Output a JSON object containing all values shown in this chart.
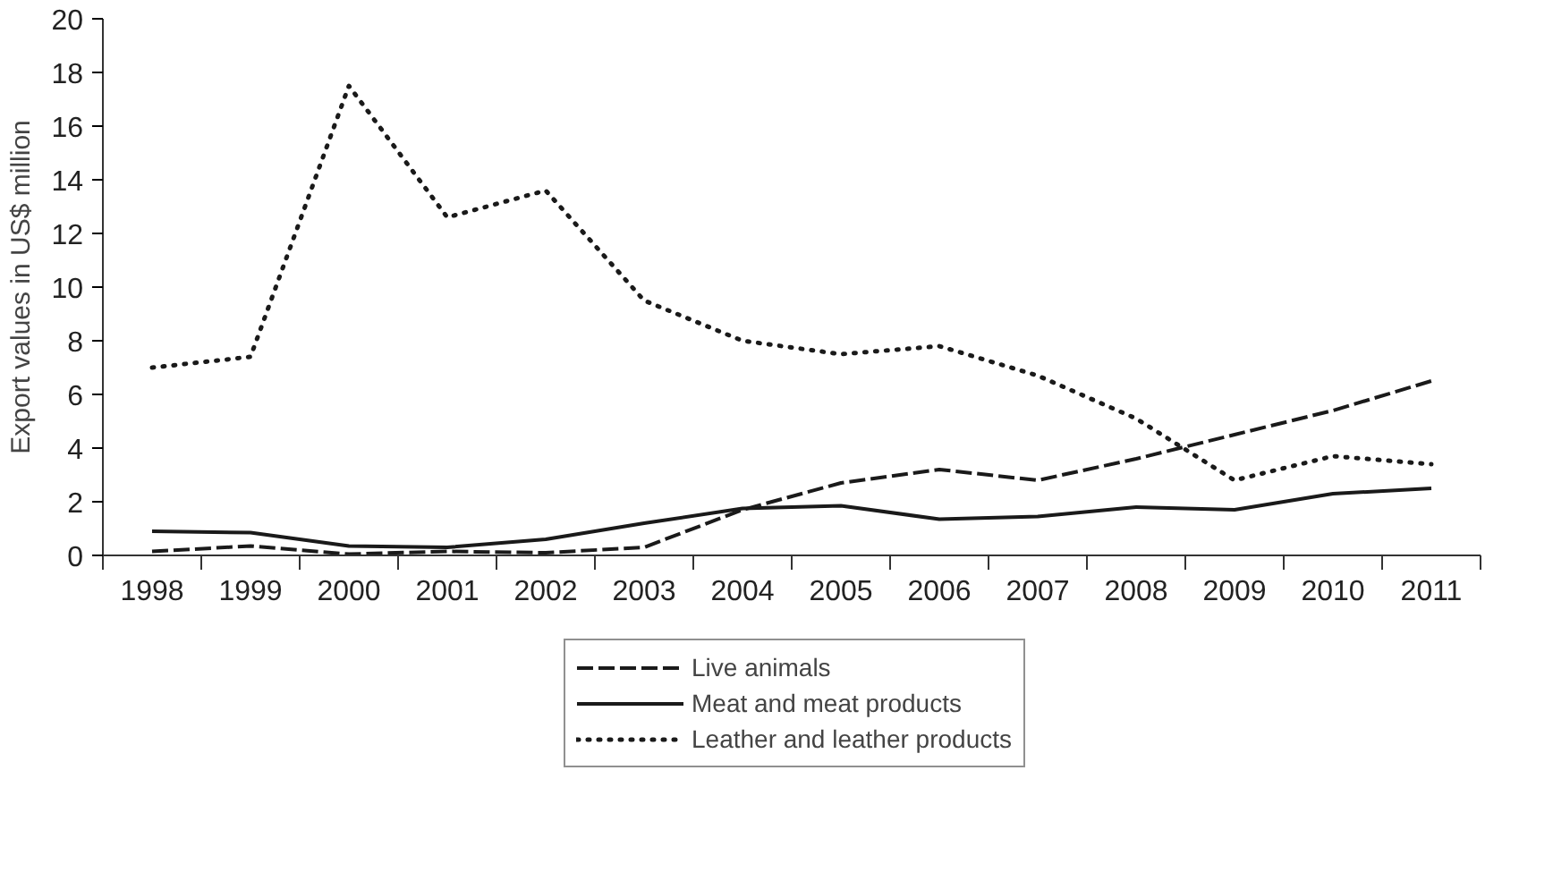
{
  "chart_data": {
    "type": "line",
    "ylabel": "Export values in US$ million",
    "categories": [
      "1998",
      "1999",
      "2000",
      "2001",
      "2002",
      "2003",
      "2004",
      "2005",
      "2006",
      "2007",
      "2008",
      "2009",
      "2010",
      "2011"
    ],
    "series": [
      {
        "name": "Live animals",
        "color": "#1a1a1a",
        "line_style": "dashed",
        "values": [
          0.15,
          0.35,
          0.05,
          0.15,
          0.1,
          0.3,
          1.7,
          2.7,
          3.2,
          2.8,
          3.6,
          4.5,
          5.4,
          6.5
        ]
      },
      {
        "name": "Meat and meat products",
        "color": "#1a1a1a",
        "line_style": "solid",
        "values": [
          0.9,
          0.85,
          0.35,
          0.3,
          0.6,
          1.2,
          1.75,
          1.85,
          1.35,
          1.45,
          1.8,
          1.7,
          2.3,
          2.5
        ]
      },
      {
        "name": "Leather and leather products",
        "color": "#1a1a1a",
        "line_style": "dotted",
        "values": [
          7.0,
          7.4,
          17.5,
          12.6,
          13.6,
          9.5,
          8.0,
          7.5,
          7.8,
          6.7,
          5.1,
          2.8,
          3.7,
          3.4
        ]
      }
    ],
    "ylim": [
      0,
      20
    ],
    "yticks": [
      0,
      2,
      4,
      6,
      8,
      10,
      12,
      14,
      16,
      18,
      20
    ],
    "grid": false,
    "legend": "bottom"
  }
}
